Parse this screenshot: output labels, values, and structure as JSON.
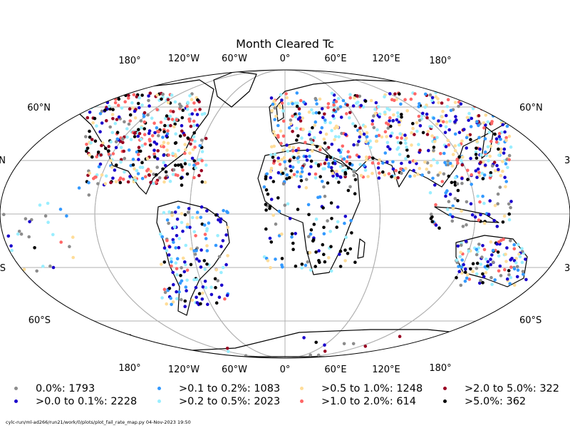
{
  "title": "Month Cleared Tc",
  "lon_ticks": [
    "180°",
    "120°W",
    "60°W",
    "0°",
    "60°E",
    "120°E",
    "180°"
  ],
  "lat_ticks": {
    "n60": "60°N",
    "n30_left": "N",
    "n30_right": "3",
    "s30_left": "S",
    "s30_right": "3",
    "s60": "60°S"
  },
  "legend": [
    {
      "label": "0.0%: 1793",
      "color": "#8c8c8c"
    },
    {
      "label": ">0.0 to 0.1%: 2228",
      "color": "#1a00cc"
    },
    {
      "label": ">0.1 to 0.2%: 1083",
      "color": "#3399ff"
    },
    {
      "label": ">0.2 to 0.5%: 2023",
      "color": "#99eeff"
    },
    {
      "label": ">0.5 to 1.0%: 1248",
      "color": "#ffdd99"
    },
    {
      "label": ">1.0 to 2.0%: 614",
      "color": "#ff6666"
    },
    {
      "label": ">2.0 to 5.0%: 322",
      "color": "#990022"
    },
    {
      "label": ">5.0%: 362",
      "color": "#000000"
    }
  ],
  "footer": "cylc-run/ml-ad266/run21/work/0/plots/plot_fail_rate_map.py    04-Nov-2023 19:50",
  "colors": {
    "coastline": "#000000",
    "graticule": "#b0b0b0",
    "ocean": "#ffffff"
  }
}
